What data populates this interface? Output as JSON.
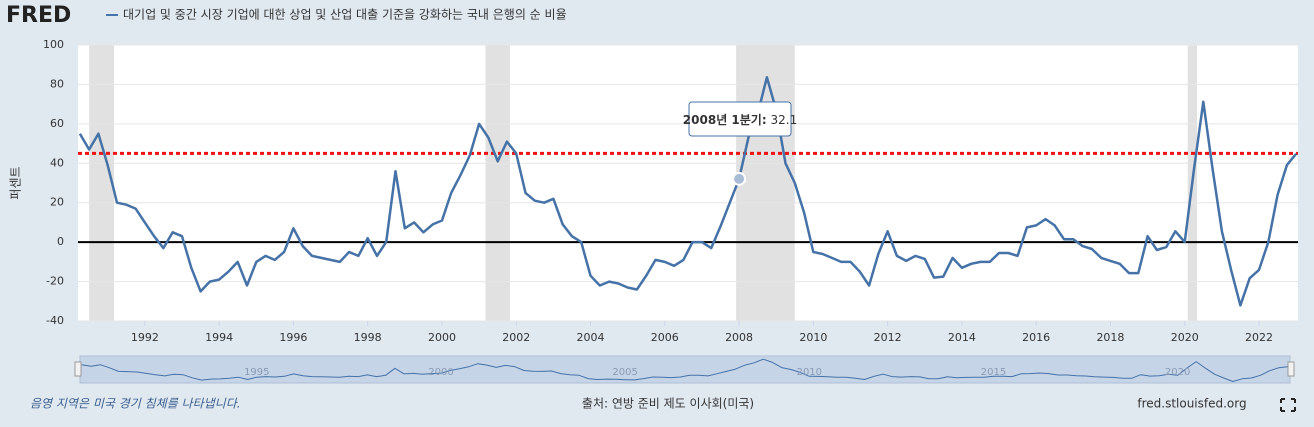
{
  "chart_data": {
    "type": "line",
    "logo": "FRED",
    "title": "대기업 및 중간 시장 기업에 대한 상업 및 산업 대출 기준을 강화하는 국내 은행의 순 비율",
    "ylabel": "퍼센트",
    "footer_note": "음영 지역은 미국 경기 침체를 나타냅니다.",
    "source": "출처: 연방 준비 제도 이사회(미국)",
    "site": "fred.stlouisfed.org",
    "tooltip": {
      "label": "2008년 1분기:",
      "index": 71
    },
    "xlim": [
      1990.2,
      2023.05
    ],
    "ylim": [
      -40,
      100
    ],
    "xticks": [
      1992,
      1994,
      1996,
      1998,
      2000,
      2002,
      2004,
      2006,
      2008,
      2010,
      2012,
      2014,
      2016,
      2018,
      2020,
      2022
    ],
    "yticks": [
      -40,
      -20,
      0,
      20,
      40,
      60,
      80,
      100
    ],
    "navigator_ticks": [
      1995,
      2000,
      2005,
      2010,
      2015,
      2020
    ],
    "grid": true,
    "reference_line": {
      "value": 45,
      "color": "#ee1111"
    },
    "recessions": [
      [
        1990.5,
        1991.17
      ],
      [
        2001.17,
        2001.83
      ],
      [
        2007.92,
        2009.5
      ],
      [
        2020.08,
        2020.33
      ]
    ],
    "x": [
      1990.25,
      1990.5,
      1990.75,
      1991,
      1991.25,
      1991.5,
      1991.75,
      1992,
      1992.25,
      1992.5,
      1992.75,
      1993,
      1993.25,
      1993.5,
      1993.75,
      1994,
      1994.25,
      1994.5,
      1994.75,
      1995,
      1995.25,
      1995.5,
      1995.75,
      1996,
      1996.25,
      1996.5,
      1996.75,
      1997,
      1997.25,
      1997.5,
      1997.75,
      1998,
      1998.25,
      1998.5,
      1998.75,
      1999,
      1999.25,
      1999.5,
      1999.75,
      2000,
      2000.25,
      2000.5,
      2000.75,
      2001,
      2001.25,
      2001.5,
      2001.75,
      2002,
      2002.25,
      2002.5,
      2002.75,
      2003,
      2003.25,
      2003.5,
      2003.75,
      2004,
      2004.25,
      2004.5,
      2004.75,
      2005,
      2005.25,
      2005.5,
      2005.75,
      2006,
      2006.25,
      2006.5,
      2006.75,
      2007,
      2007.25,
      2007.5,
      2007.75,
      2008,
      2008.25,
      2008.5,
      2008.75,
      2009,
      2009.25,
      2009.5,
      2009.75,
      2010,
      2010.25,
      2010.5,
      2010.75,
      2011,
      2011.25,
      2011.5,
      2011.75,
      2012,
      2012.25,
      2012.5,
      2012.75,
      2013,
      2013.25,
      2013.5,
      2013.75,
      2014,
      2014.25,
      2014.5,
      2014.75,
      2015,
      2015.25,
      2015.5,
      2015.75,
      2016,
      2016.25,
      2016.5,
      2016.75,
      2017,
      2017.25,
      2017.5,
      2017.75,
      2018,
      2018.25,
      2018.5,
      2018.75,
      2019,
      2019.25,
      2019.5,
      2019.75,
      2020,
      2020.25,
      2020.5,
      2020.75,
      2021,
      2021.25,
      2021.5,
      2021.75,
      2022,
      2022.25,
      2022.5,
      2022.75,
      2023
    ],
    "series": [
      {
        "name": "대기업 및 중간 시장 기업에 대한 상업 및 산업 대출 기준을 강화하는 국내 은행의 순 비율",
        "color": "#4572a7",
        "values": [
          55,
          47,
          55,
          39,
          20,
          19,
          17,
          10,
          3,
          -3,
          5,
          3,
          -13,
          -25,
          -20,
          -19,
          -15,
          -10,
          -22,
          -10,
          -7,
          -9,
          -5,
          7,
          -2,
          -7,
          -8,
          -9,
          -10,
          -5,
          -7,
          2,
          -7,
          0,
          36,
          7,
          10,
          5,
          9,
          11,
          25,
          34,
          44,
          60,
          53,
          41,
          51,
          45,
          25,
          21,
          20,
          22,
          9,
          3,
          0,
          -17,
          -22,
          -20,
          -21,
          -23,
          -24,
          -17,
          -9,
          -10,
          -12,
          -9,
          0,
          0,
          -3,
          8,
          20,
          32.1,
          53,
          65,
          83.6,
          67,
          40,
          30,
          15,
          -5,
          -6,
          -8,
          -10,
          -10,
          -15,
          -22,
          -6,
          5.5,
          -7,
          -9.5,
          -7,
          -8.5,
          -18,
          -17.5,
          -8,
          -13,
          -11,
          -10,
          -10,
          -5.5,
          -5.5,
          -7,
          7.5,
          8.5,
          11.7,
          8.5,
          1.5,
          1.5,
          -2,
          -3.5,
          -8,
          -9.5,
          -11,
          -15.7,
          -15.7,
          3,
          -4,
          -2.5,
          5.5,
          0,
          37,
          71.2,
          37,
          5.5,
          -14.3,
          -32.1,
          -18.3,
          -14.1,
          0,
          24,
          39.1,
          44.8
        ]
      }
    ]
  }
}
